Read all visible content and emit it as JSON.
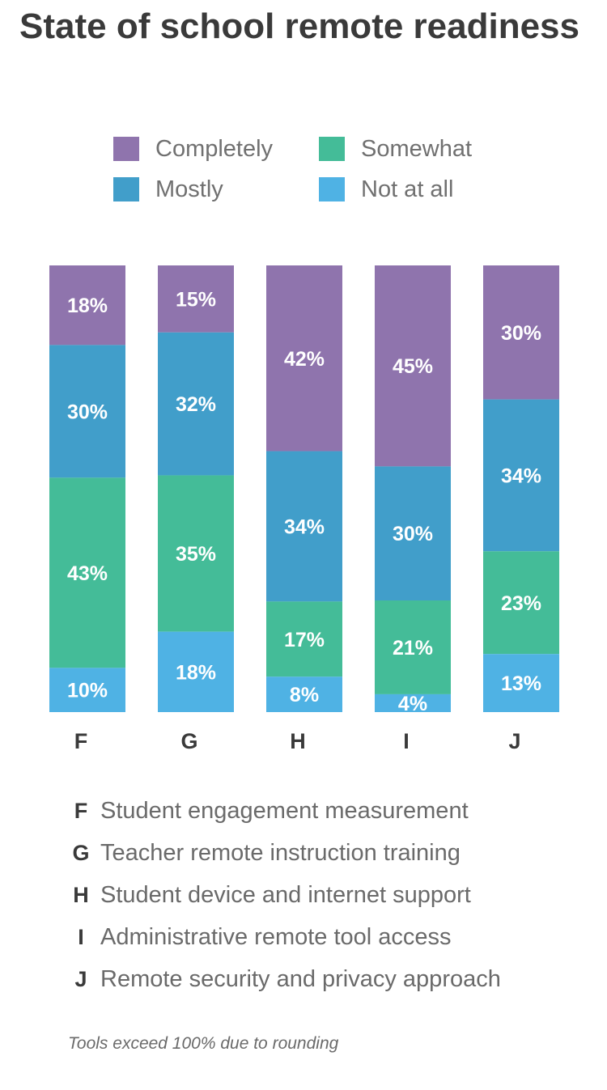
{
  "title": "State of school remote readiness",
  "legend": [
    {
      "label": "Completely",
      "color": "#8f74ad"
    },
    {
      "label": "Somewhat",
      "color": "#44bc98"
    },
    {
      "label": "Mostly",
      "color": "#419eca"
    },
    {
      "label": "Not at all",
      "color": "#4fb2e4"
    }
  ],
  "chart_data": {
    "type": "bar",
    "stacked": true,
    "orientation": "vertical",
    "categories": [
      "F",
      "G",
      "H",
      "I",
      "J"
    ],
    "series": [
      {
        "name": "Completely",
        "color": "#8f74ad",
        "values": [
          18,
          15,
          42,
          45,
          30
        ],
        "labels": [
          "18%",
          "15%",
          "42%",
          "45%",
          "30%"
        ]
      },
      {
        "name": "Mostly",
        "color": "#419eca",
        "values": [
          30,
          32,
          34,
          30,
          34
        ],
        "labels": [
          "30%",
          "32%",
          "34%",
          "30%",
          "34%"
        ]
      },
      {
        "name": "Somewhat",
        "color": "#44bc98",
        "values": [
          43,
          35,
          17,
          21,
          23
        ],
        "labels": [
          "43%",
          "35%",
          "17%",
          "21%",
          "23%"
        ]
      },
      {
        "name": "Not at all",
        "color": "#4fb2e4",
        "values": [
          10,
          18,
          8,
          4,
          13
        ],
        "labels": [
          "10%",
          "18%",
          "8%",
          "4%",
          "13%"
        ]
      }
    ],
    "ylabel": "",
    "xlabel": ""
  },
  "descriptions": [
    {
      "letter": "F",
      "text": "Student engagement measurement"
    },
    {
      "letter": "G",
      "text": "Teacher remote instruction training"
    },
    {
      "letter": "H",
      "text": "Student device and internet support"
    },
    {
      "letter": "I",
      "text": "Administrative remote tool access"
    },
    {
      "letter": "J",
      "text": "Remote security and privacy approach"
    }
  ],
  "footnote": "Tools exceed 100% due to rounding"
}
